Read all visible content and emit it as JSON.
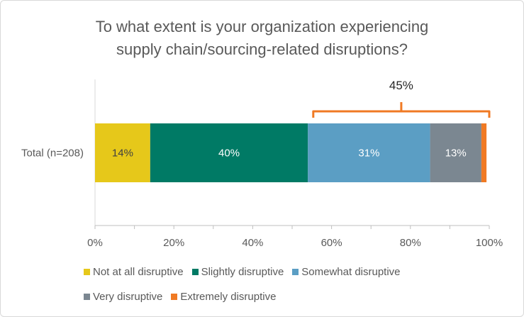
{
  "chart_data": {
    "type": "bar",
    "orientation": "horizontal",
    "stacked": true,
    "title_lines": [
      "To what extent is your organization experiencing",
      "supply chain/sourcing-related disruptions?"
    ],
    "categories": [
      "Total (n=208)"
    ],
    "series": [
      {
        "name": "Not at all disruptive",
        "values": [
          14
        ],
        "label": "14%",
        "color": "#E6C81A",
        "label_color": "#404040"
      },
      {
        "name": "Slightly disruptive",
        "values": [
          40
        ],
        "label": "40%",
        "color": "#007A65",
        "label_color": "#ffffff"
      },
      {
        "name": "Somewhat disruptive",
        "values": [
          31
        ],
        "label": "31%",
        "color": "#5B9EC4",
        "label_color": "#ffffff"
      },
      {
        "name": "Very disruptive",
        "values": [
          13
        ],
        "label": "13%",
        "color": "#7B8791",
        "label_color": "#ffffff"
      },
      {
        "name": "Extremely disruptive",
        "values": [
          1.3
        ],
        "label": "",
        "color": "#F07A24",
        "label_color": "#ffffff"
      }
    ],
    "xlim": [
      0,
      100
    ],
    "xticks": [
      "0%",
      "20%",
      "40%",
      "60%",
      "80%",
      "100%"
    ],
    "xtick_values": [
      0,
      20,
      40,
      60,
      80,
      100
    ],
    "grid": false,
    "legend_position": "bottom",
    "annotation": {
      "label": "45%",
      "from": 55,
      "to": 100,
      "color": "#F07A24"
    }
  }
}
